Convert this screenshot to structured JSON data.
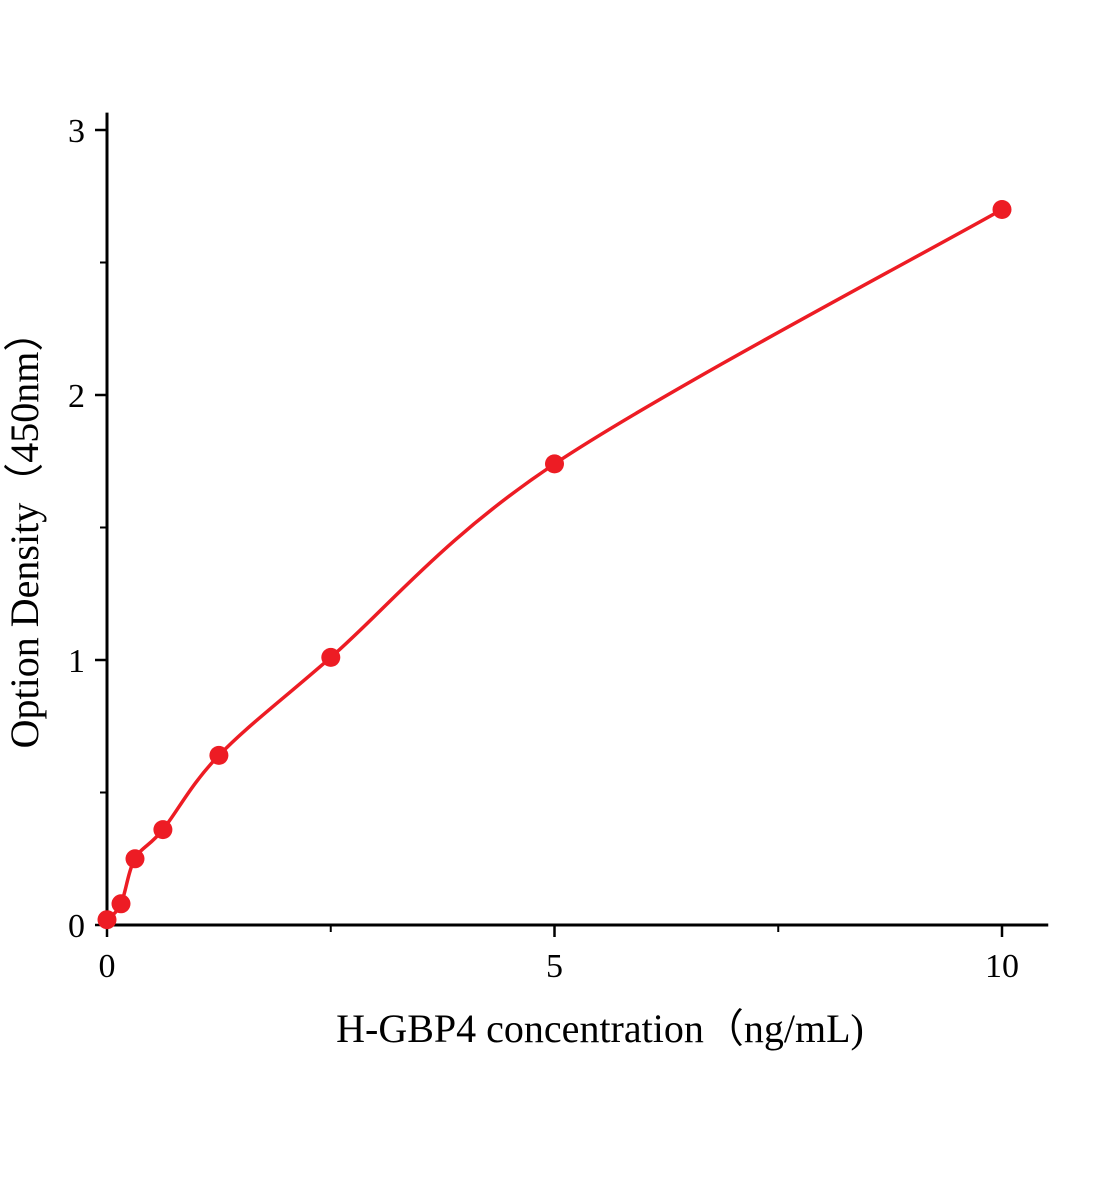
{
  "chart_data": {
    "type": "line",
    "title": "",
    "xlabel": "H-GBP4 concentration（ng/mL)",
    "ylabel": "Option Density（450nm）",
    "x": [
      0,
      0.156,
      0.313,
      0.625,
      1.25,
      2.5,
      5,
      10
    ],
    "y": [
      0.02,
      0.08,
      0.25,
      0.36,
      0.64,
      1.01,
      1.74,
      2.7
    ],
    "xlim": [
      0,
      10.5
    ],
    "ylim": [
      0,
      3.06
    ],
    "x_ticks": [
      0,
      5,
      10
    ],
    "y_ticks": [
      0,
      1,
      2,
      3
    ],
    "x_minor_ticks": [
      2.5,
      7.5
    ],
    "y_minor_ticks": [
      0.5,
      1.5,
      2.5
    ],
    "grid": false,
    "legend": null,
    "line_color": "#ed1c24",
    "axis_color": "#000000",
    "marker": "circle",
    "marker_size": 9.5
  }
}
